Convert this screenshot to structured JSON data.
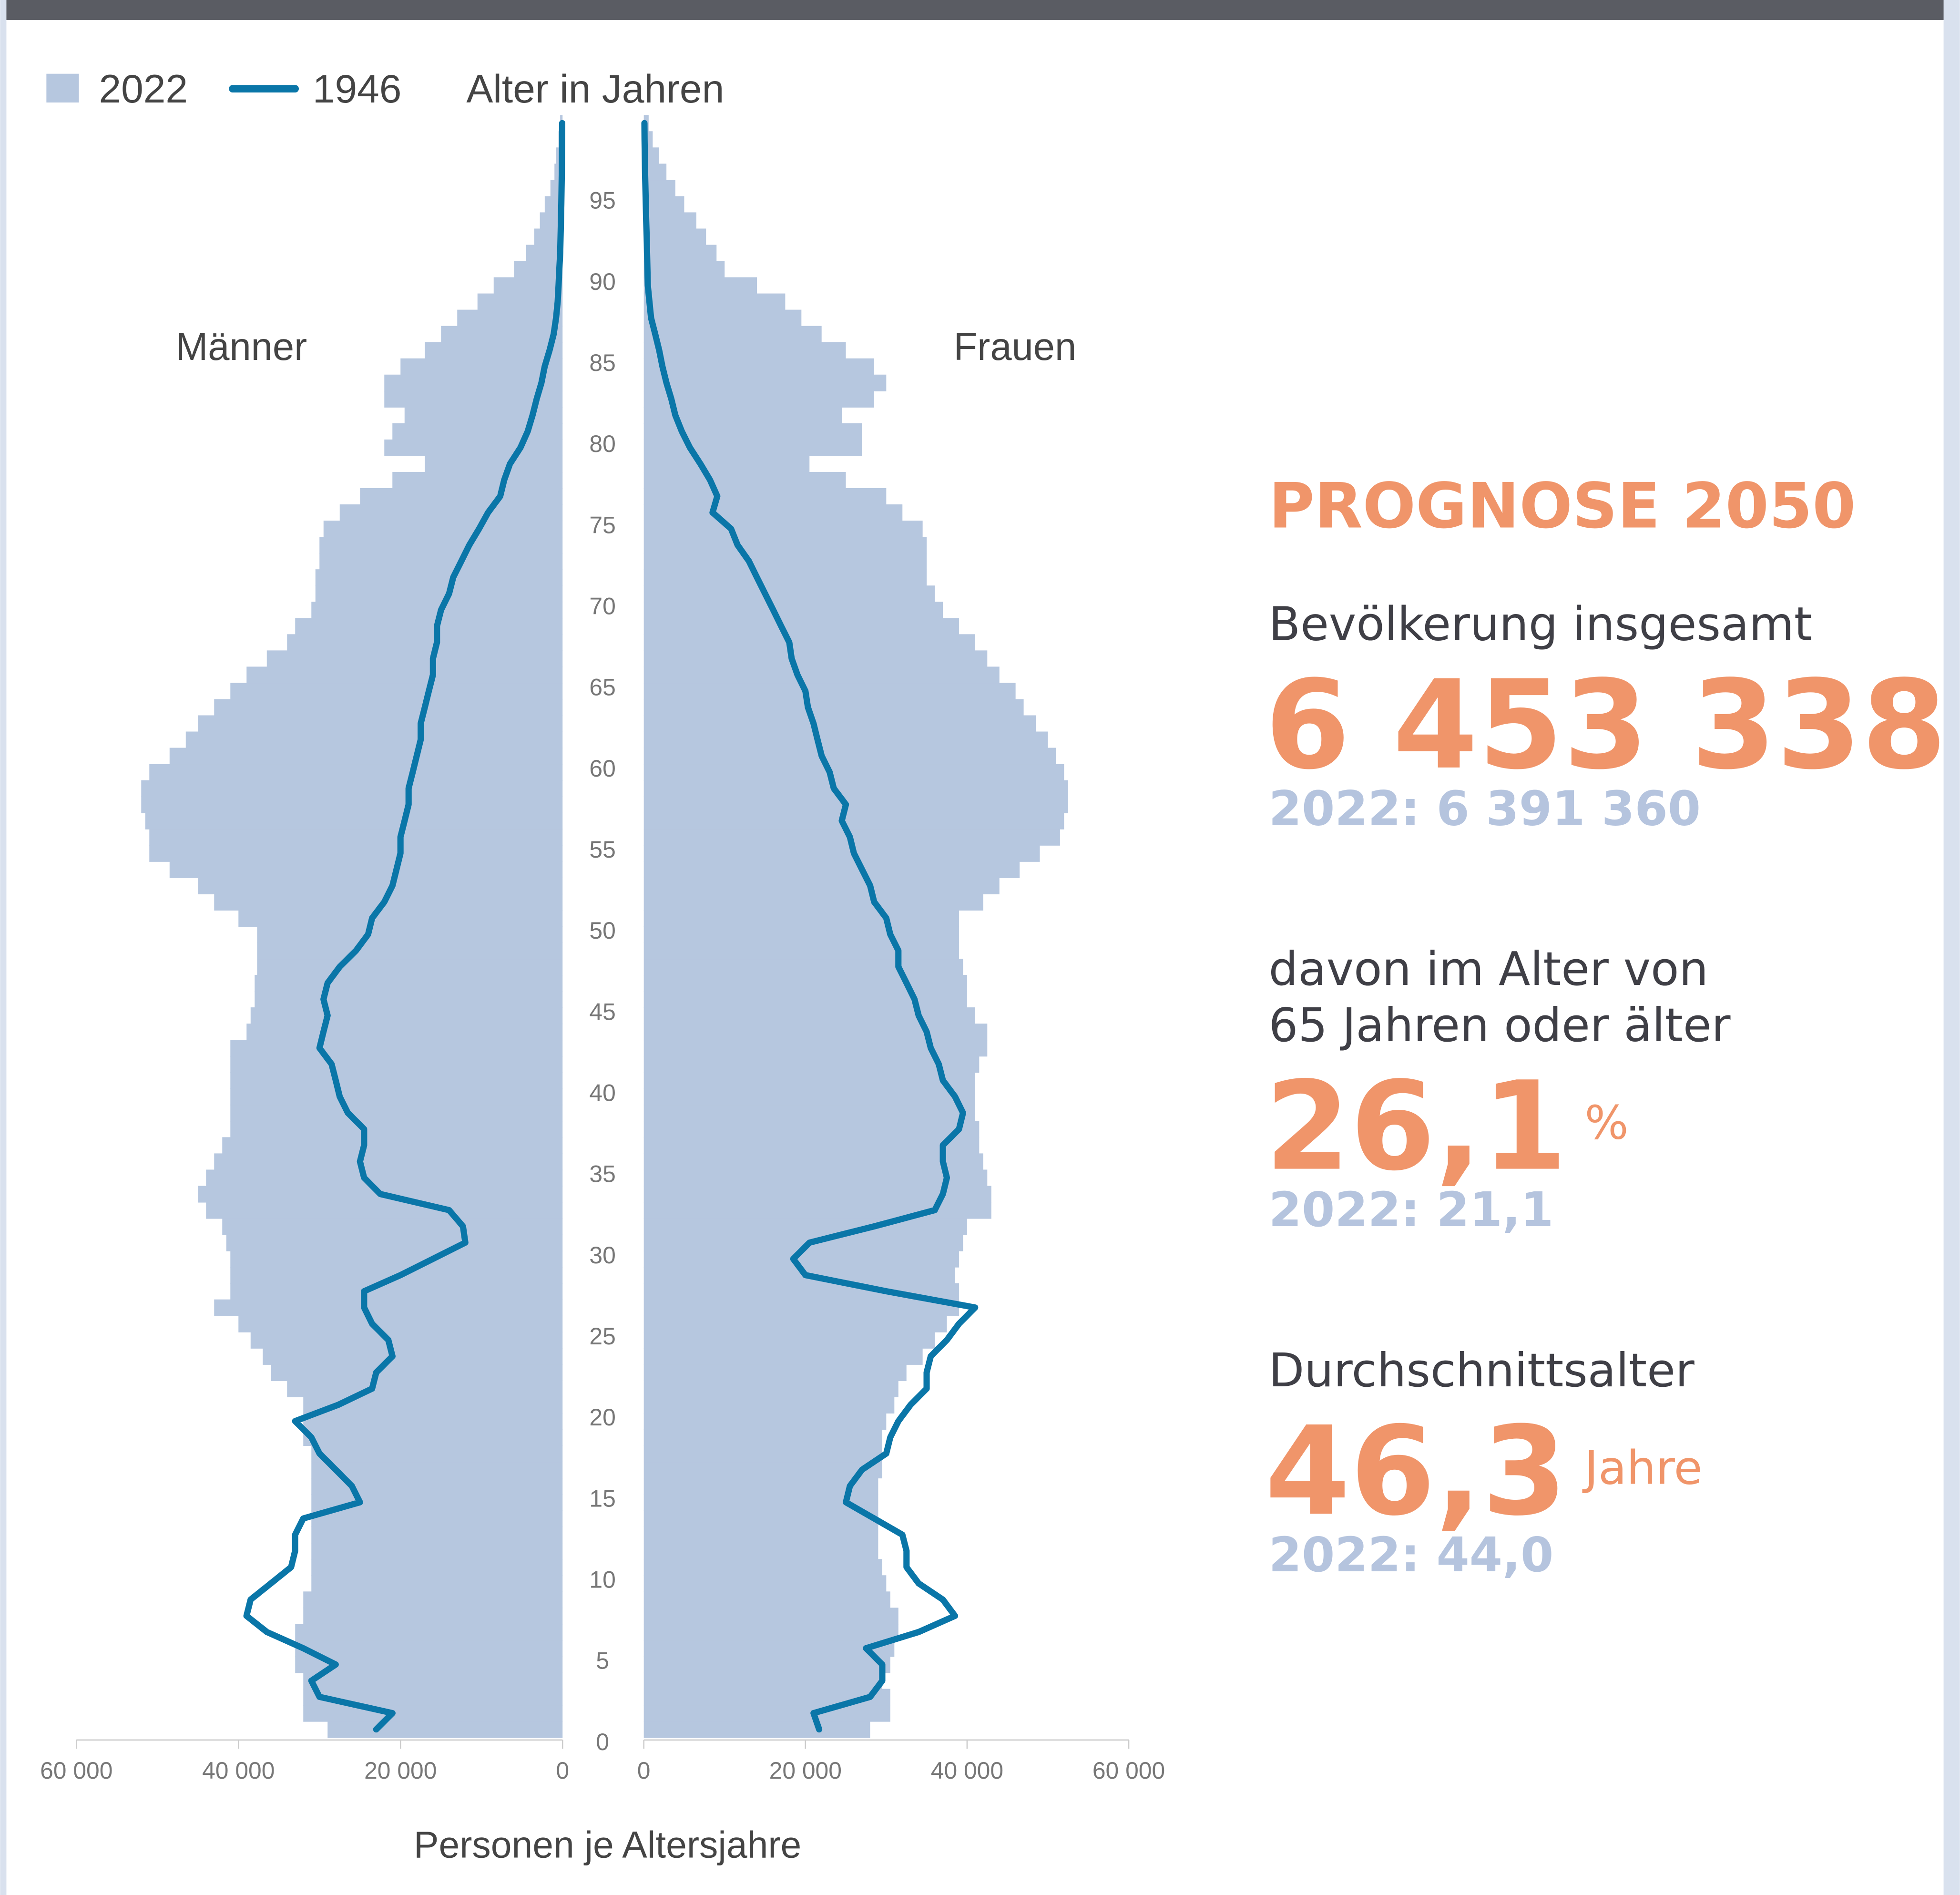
{
  "chart_data": {
    "type": "pyramid",
    "ylabel": "Alter in Jahren",
    "xlabel": "Personen je Altersjahre",
    "categories": [
      "0",
      null,
      null,
      null,
      null,
      "5",
      null,
      null,
      null,
      null,
      "10",
      null,
      null,
      null,
      null,
      "15",
      null,
      null,
      null,
      null,
      "20",
      null,
      null,
      null,
      null,
      "25",
      null,
      null,
      null,
      null,
      "30",
      null,
      null,
      null,
      null,
      "35",
      null,
      null,
      null,
      null,
      "40",
      null,
      null,
      null,
      null,
      "45",
      null,
      null,
      null,
      null,
      "50",
      null,
      null,
      null,
      null,
      "55",
      null,
      null,
      null,
      null,
      "60",
      null,
      null,
      null,
      null,
      "65",
      null,
      null,
      null,
      null,
      "70",
      null,
      null,
      null,
      null,
      "75",
      null,
      null,
      null,
      null,
      "80",
      null,
      null,
      null,
      null,
      "85",
      null,
      null,
      null,
      null,
      "90",
      null,
      null,
      null,
      null,
      "95",
      null,
      null,
      null,
      null
    ],
    "xlim": [
      0,
      60000
    ],
    "xticks": [
      0,
      {
        "value": 20000,
        "label": "20 000"
      },
      {
        "value": 40000,
        "label": "40 000"
      },
      {
        "value": 60000,
        "label": "60 000"
      }
    ],
    "panels": [
      {
        "label": "Männer",
        "series": [
          {
            "name": "2022",
            "type": "bar",
            "color": "#b6c7df",
            "values": [
              29000,
              32000,
              32000,
              32000,
              33000,
              33000,
              33000,
              32000,
              32000,
              31000,
              31000,
              31000,
              31000,
              31000,
              31000,
              31000,
              31000,
              31000,
              32000,
              32000,
              32000,
              34000,
              36000,
              37000,
              38500,
              40000,
              43000,
              41000,
              41000,
              41000,
              41500,
              42000,
              44000,
              45000,
              44000,
              43000,
              42000,
              41000,
              41000,
              41000,
              41000,
              41000,
              41000,
              39000,
              38500,
              38000,
              38000,
              37700,
              37700,
              37700,
              40000,
              43000,
              45000,
              48500,
              51000,
              51000,
              51500,
              52000,
              52000,
              51000,
              48500,
              46500,
              45000,
              43000,
              41000,
              39000,
              36500,
              34000,
              33000,
              31000,
              30500,
              30500,
              30000,
              30000,
              29500,
              27500,
              25000,
              21000,
              17000,
              22000,
              21000,
              19500,
              22000,
              22000,
              20000,
              17000,
              15000,
              13000,
              10500,
              8500,
              6000,
              4500,
              3500,
              2800,
              2200,
              1500,
              1000,
              800,
              500,
              300
            ]
          },
          {
            "name": "1946",
            "type": "line",
            "color": "#0a76a8",
            "values": [
              23000,
              21000,
              30000,
              31000,
              28000,
              32000,
              36500,
              39000,
              38500,
              36000,
              33500,
              33000,
              33000,
              32000,
              25000,
              26000,
              28000,
              30000,
              31000,
              33000,
              27700,
              23500,
              23000,
              21000,
              21500,
              23500,
              24500,
              24500,
              20000,
              16000,
              12000,
              12300,
              14000,
              22500,
              24500,
              25000,
              24500,
              24500,
              26500,
              27500,
              28000,
              28500,
              30000,
              29500,
              29000,
              29500,
              29000,
              27500,
              25500,
              24000,
              23500,
              22000,
              21000,
              20500,
              20000,
              20000,
              19500,
              19000,
              19000,
              18500,
              18000,
              17500,
              17500,
              17000,
              16500,
              16000,
              16000,
              15500,
              15500,
              15000,
              14000,
              13500,
              12500,
              11500,
              10300,
              9200,
              7700,
              7200,
              6500,
              5200,
              4300,
              3700,
              3200,
              2600,
              2200,
              1600,
              1100,
              800,
              600,
              500,
              400,
              300,
              250,
              200,
              150,
              120,
              100,
              80,
              60,
              50
            ]
          }
        ]
      },
      {
        "label": "Frauen",
        "series": [
          {
            "name": "2022",
            "type": "bar",
            "color": "#b6c7df",
            "values": [
              28000,
              30500,
              30500,
              29500,
              30500,
              31000,
              31500,
              31500,
              30500,
              30000,
              29500,
              29000,
              29000,
              29000,
              29000,
              29000,
              29500,
              29500,
              29500,
              30000,
              31000,
              31500,
              32500,
              34500,
              36000,
              37500,
              39000,
              39000,
              38500,
              39000,
              39500,
              40000,
              43000,
              43000,
              42500,
              42000,
              41500,
              41500,
              41000,
              41000,
              41000,
              41500,
              42500,
              42500,
              41000,
              40000,
              40000,
              39500,
              39000,
              39000,
              39000,
              42000,
              44000,
              46500,
              49000,
              51500,
              52000,
              52500,
              52500,
              52000,
              51000,
              50000,
              48500,
              47000,
              46000,
              44000,
              42500,
              41000,
              39000,
              37000,
              36000,
              35000,
              35000,
              35000,
              34500,
              32000,
              30000,
              25000,
              20500,
              27000,
              27000,
              24500,
              28500,
              30000,
              28500,
              25000,
              22000,
              19500,
              17500,
              14000,
              10000,
              9000,
              7700,
              6500,
              5000,
              3900,
              2800,
              1900,
              1100,
              600
            ]
          },
          {
            "name": "1946",
            "type": "line",
            "color": "#0a76a8",
            "values": [
              21700,
              21000,
              28000,
              29500,
              29500,
              27500,
              34000,
              38500,
              37000,
              34000,
              32500,
              32500,
              32000,
              28500,
              25000,
              25500,
              27000,
              30000,
              30500,
              31500,
              33000,
              35000,
              35000,
              35500,
              37500,
              39000,
              41000,
              30000,
              20000,
              18500,
              20500,
              28500,
              36000,
              37000,
              37500,
              37000,
              37000,
              39000,
              39500,
              38500,
              37000,
              36500,
              35500,
              35000,
              34000,
              33500,
              32500,
              31500,
              31500,
              30500,
              30000,
              28500,
              28000,
              27000,
              26000,
              25500,
              24500,
              25000,
              23500,
              23000,
              22000,
              21500,
              21000,
              20300,
              20000,
              19000,
              18300,
              18000,
              17000,
              16000,
              15000,
              14000,
              13000,
              11600,
              10800,
              8500,
              9100,
              8200,
              7000,
              5700,
              4700,
              3900,
              3400,
              2800,
              2300,
              1900,
              1400,
              900,
              700,
              500,
              450,
              400,
              350,
              300,
              250,
              200,
              150,
              120,
              100,
              80
            ]
          }
        ]
      }
    ]
  },
  "infobox": {
    "title": "PROGNOSE 2050",
    "blocks": [
      {
        "label": [
          "Bevölkerung insgesamt"
        ],
        "value": "6 453 338",
        "unit": null,
        "previous": "2022: 6 391 360"
      },
      {
        "label": [
          "davon im Alter von",
          "65 Jahren oder älter"
        ],
        "value": "26,1",
        "unit": "%",
        "previous": "2022: 21,1"
      },
      {
        "label": [
          "Durchschnittsalter"
        ],
        "value": "46,3",
        "unit": "Jahre",
        "previous": "2022: 44,0"
      }
    ]
  }
}
